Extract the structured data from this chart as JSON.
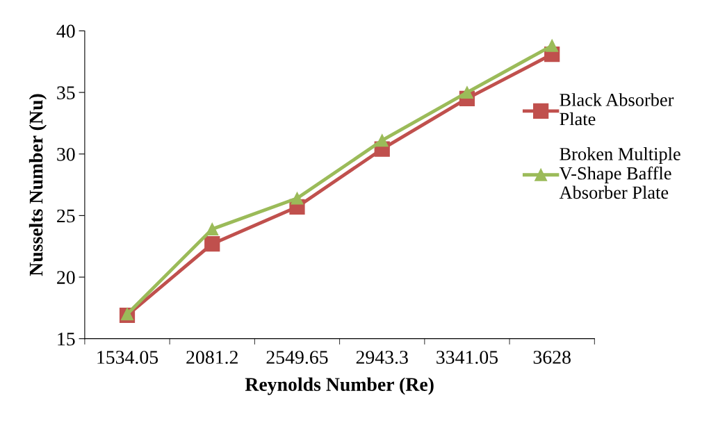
{
  "chart_data": {
    "type": "line",
    "xlabel": "Reynolds Number (Re)",
    "ylabel": "Nusselts Number (Nu)",
    "categories": [
      "1534.05",
      "2081.2",
      "2549.65",
      "2943.3",
      "3341.05",
      "3628"
    ],
    "series": [
      {
        "name": "Black Absorber\nPlate",
        "color": "#c0504d",
        "marker": "square",
        "values": [
          16.9,
          22.7,
          25.7,
          30.4,
          34.5,
          38.1
        ]
      },
      {
        "name": "Broken Multiple\nV-Shape Baffle\nAbsorber Plate",
        "color": "#9bbb59",
        "marker": "triangle",
        "values": [
          17.0,
          23.9,
          26.4,
          31.1,
          35.0,
          38.8
        ]
      }
    ],
    "ylim": [
      15,
      40
    ],
    "yticks": [
      15,
      20,
      25,
      30,
      35,
      40
    ],
    "grid": false,
    "legend": "right",
    "line_style": "solid"
  }
}
